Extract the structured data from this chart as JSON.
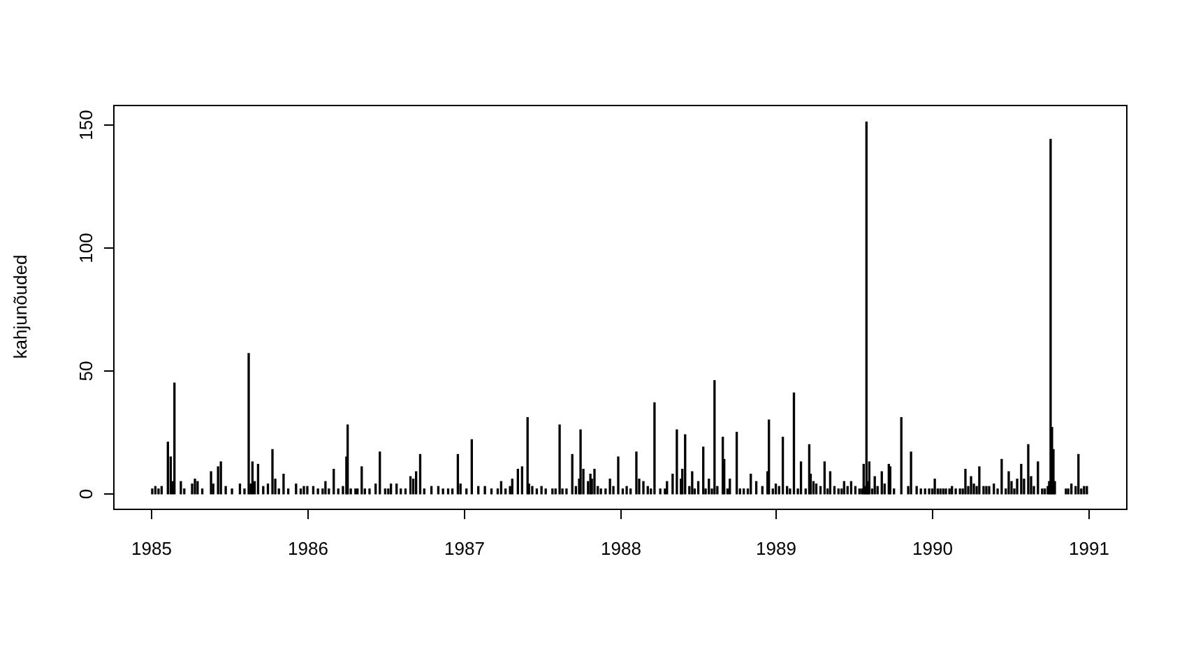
{
  "chart_data": {
    "type": "bar",
    "ylabel": "kahjunõuded",
    "color": "#000000",
    "xlim": [
      1984.76,
      1991.24
    ],
    "ylim": [
      -6,
      158
    ],
    "xticks": [
      1985,
      1986,
      1987,
      1988,
      1989,
      1990,
      1991
    ],
    "yticks": [
      0,
      50,
      100,
      150
    ],
    "x": [
      1985.01,
      1985.03,
      1985.05,
      1985.07,
      1985.11,
      1985.128,
      1985.14,
      1985.152,
      1985.193,
      1985.215,
      1985.265,
      1985.283,
      1985.3,
      1985.33,
      1985.386,
      1985.4,
      1985.431,
      1985.449,
      1985.48,
      1985.52,
      1985.571,
      1985.6,
      1985.627,
      1985.64,
      1985.651,
      1985.665,
      1985.687,
      1985.72,
      1985.75,
      1985.779,
      1985.797,
      1985.82,
      1985.85,
      1985.88,
      1985.93,
      1985.96,
      1985.98,
      1986.002,
      1986.04,
      1986.07,
      1986.1,
      1986.118,
      1986.14,
      1986.171,
      1986.2,
      1986.23,
      1986.252,
      1986.26,
      1986.28,
      1986.31,
      1986.323,
      1986.35,
      1986.37,
      1986.4,
      1986.439,
      1986.466,
      1986.5,
      1986.52,
      1986.537,
      1986.573,
      1986.6,
      1986.63,
      1986.662,
      1986.68,
      1986.698,
      1986.724,
      1986.75,
      1986.796,
      1986.84,
      1986.87,
      1986.903,
      1986.93,
      1986.965,
      1986.982,
      1987.02,
      1987.054,
      1987.096,
      1987.138,
      1987.18,
      1987.22,
      1987.242,
      1987.27,
      1987.299,
      1987.313,
      1987.349,
      1987.376,
      1987.411,
      1987.42,
      1987.441,
      1987.47,
      1987.5,
      1987.527,
      1987.57,
      1987.59,
      1987.616,
      1987.634,
      1987.66,
      1987.697,
      1987.72,
      1987.741,
      1987.75,
      1987.768,
      1987.798,
      1987.813,
      1987.822,
      1987.839,
      1987.86,
      1987.88,
      1987.91,
      1987.938,
      1987.96,
      1987.991,
      1988.02,
      1988.045,
      1988.07,
      1988.107,
      1988.125,
      1988.152,
      1988.18,
      1988.2,
      1988.223,
      1988.26,
      1988.29,
      1988.303,
      1988.339,
      1988.366,
      1988.392,
      1988.401,
      1988.419,
      1988.446,
      1988.464,
      1988.48,
      1988.503,
      1988.535,
      1988.55,
      1988.571,
      1988.59,
      1988.607,
      1988.625,
      1988.66,
      1988.669,
      1988.69,
      1988.705,
      1988.749,
      1988.77,
      1988.794,
      1988.82,
      1988.839,
      1988.874,
      1988.913,
      1988.946,
      1988.955,
      1988.98,
      1988.999,
      1989.02,
      1989.044,
      1989.071,
      1989.09,
      1989.115,
      1989.14,
      1989.16,
      1989.19,
      1989.213,
      1989.222,
      1989.24,
      1989.258,
      1989.285,
      1989.311,
      1989.33,
      1989.347,
      1989.374,
      1989.4,
      1989.42,
      1989.436,
      1989.458,
      1989.481,
      1989.508,
      1989.534,
      1989.55,
      1989.561,
      1989.57,
      1989.579,
      1989.588,
      1989.597,
      1989.615,
      1989.632,
      1989.65,
      1989.677,
      1989.695,
      1989.722,
      1989.731,
      1989.755,
      1989.802,
      1989.846,
      1989.864,
      1989.9,
      1989.927,
      1989.954,
      1989.98,
      1990.0,
      1990.016,
      1990.035,
      1990.052,
      1990.07,
      1990.087,
      1990.11,
      1990.126,
      1990.15,
      1990.177,
      1990.195,
      1990.212,
      1990.23,
      1990.248,
      1990.266,
      1990.284,
      1990.301,
      1990.328,
      1990.346,
      1990.364,
      1990.394,
      1990.418,
      1990.444,
      1990.47,
      1990.489,
      1990.507,
      1990.525,
      1990.543,
      1990.569,
      1990.587,
      1990.614,
      1990.632,
      1990.65,
      1990.676,
      1990.703,
      1990.72,
      1990.739,
      1990.748,
      1990.757,
      1990.766,
      1990.775,
      1990.784,
      1990.855,
      1990.87,
      1990.89,
      1990.917,
      1990.935,
      1990.953,
      1990.971,
      1990.989
    ],
    "values": [
      2,
      3,
      2,
      3,
      21,
      15,
      5,
      45,
      5,
      2,
      4,
      6,
      5,
      2,
      9,
      4,
      11,
      13,
      3,
      2,
      4,
      2,
      57,
      4,
      13,
      5,
      12,
      3,
      4,
      18,
      6,
      2,
      8,
      2,
      4,
      2,
      3,
      3,
      3,
      2,
      2,
      5,
      2,
      10,
      2,
      3,
      15,
      28,
      2,
      2,
      2,
      11,
      2,
      2,
      4,
      17,
      2,
      2,
      4,
      4,
      2,
      2,
      7,
      6,
      9,
      16,
      2,
      3,
      3,
      2,
      2,
      2,
      16,
      4,
      2,
      22,
      3,
      3,
      2,
      2,
      5,
      2,
      3,
      6,
      10,
      11,
      31,
      4,
      3,
      2,
      3,
      2,
      2,
      2,
      28,
      2,
      2,
      16,
      3,
      6,
      26,
      10,
      5,
      8,
      6,
      10,
      3,
      2,
      2,
      6,
      3,
      15,
      2,
      3,
      2,
      17,
      6,
      5,
      3,
      2,
      37,
      2,
      2,
      5,
      8,
      26,
      6,
      10,
      24,
      3,
      9,
      2,
      5,
      19,
      2,
      6,
      2,
      46,
      3,
      23,
      14,
      2,
      6,
      25,
      2,
      2,
      2,
      8,
      5,
      3,
      9,
      30,
      2,
      4,
      3,
      23,
      3,
      2,
      41,
      2,
      13,
      2,
      20,
      8,
      5,
      4,
      3,
      13,
      2,
      9,
      3,
      2,
      2,
      5,
      3,
      5,
      3,
      2,
      2,
      12,
      3,
      151,
      5,
      13,
      2,
      7,
      3,
      9,
      4,
      12,
      11,
      2,
      31,
      3,
      17,
      3,
      2,
      2,
      2,
      2,
      6,
      2,
      2,
      2,
      2,
      2,
      3,
      2,
      2,
      2,
      10,
      3,
      7,
      4,
      3,
      11,
      3,
      3,
      3,
      4,
      2,
      14,
      2,
      9,
      5,
      2,
      6,
      12,
      6,
      20,
      7,
      3,
      13,
      2,
      2,
      3,
      5,
      144,
      27,
      18,
      5,
      2,
      2,
      4,
      3,
      16,
      2,
      3,
      3
    ]
  }
}
